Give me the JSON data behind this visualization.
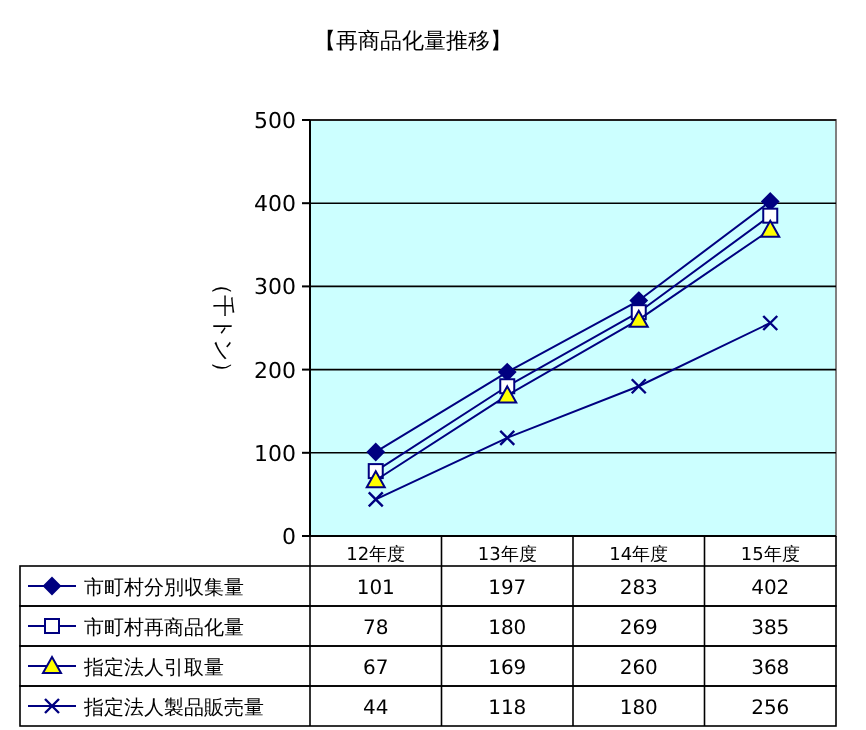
{
  "chart_data": {
    "type": "line",
    "title": "【再商品化量推移】",
    "ylabel": "（千トン）",
    "categories": [
      "12年度",
      "13年度",
      "14年度",
      "15年度"
    ],
    "series": [
      {
        "name": "市町村分別収集量",
        "color": "#000080",
        "marker": "diamond",
        "values": [
          101,
          197,
          283,
          402
        ]
      },
      {
        "name": "市町村再商品化量",
        "color": "#000080",
        "marker": "square",
        "values": [
          78,
          180,
          269,
          385
        ]
      },
      {
        "name": "指定法人引取量",
        "color": "#000080",
        "marker": "triangle",
        "values": [
          67,
          169,
          260,
          368
        ]
      },
      {
        "name": "指定法人製品販売量",
        "color": "#000080",
        "marker": "cross",
        "values": [
          44,
          118,
          180,
          256
        ]
      }
    ],
    "ylim": [
      0,
      500
    ],
    "yticks": [
      0,
      100,
      200,
      300,
      400,
      500
    ],
    "grid": "y",
    "legend": "bottom",
    "data_labels": true
  }
}
